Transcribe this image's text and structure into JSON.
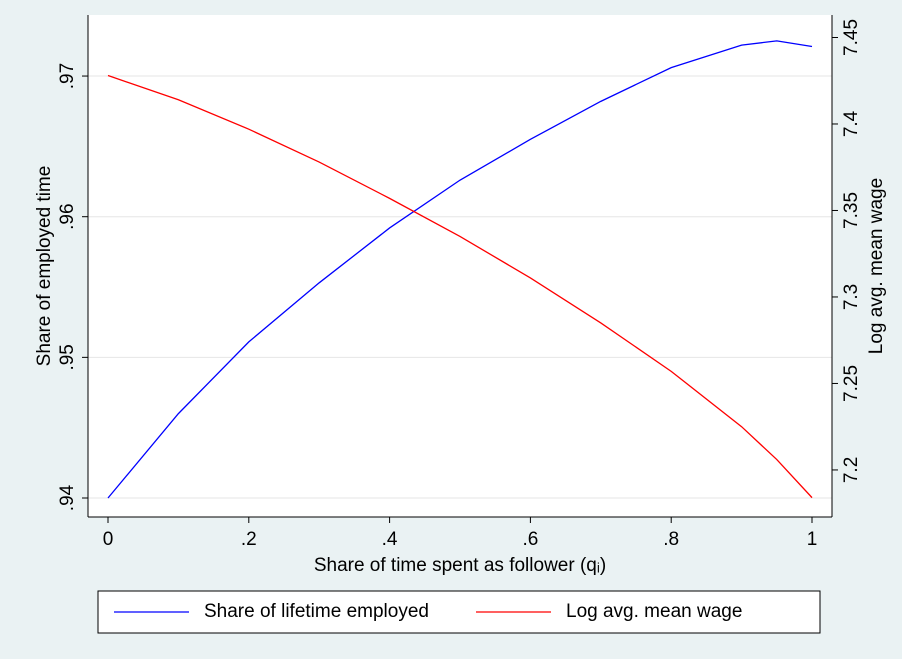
{
  "chart_data": {
    "type": "line",
    "x_label": "Share of time spent as follower (qᵢ)",
    "y_label": "Share of employed time",
    "y2_label": "Log avg. mean wage",
    "x": [
      0,
      0.1,
      0.2,
      0.3,
      0.4,
      0.5,
      0.6,
      0.7,
      0.8,
      0.9,
      0.95,
      1
    ],
    "series": [
      {
        "name": "Share of lifetime employed",
        "color": "#0000ff",
        "axis": "y",
        "values": [
          0.94,
          0.946,
          0.9511,
          0.9553,
          0.9592,
          0.9626,
          0.9655,
          0.9682,
          0.9706,
          0.9722,
          0.9725,
          0.9721
        ]
      },
      {
        "name": "Log avg. mean wage",
        "color": "#ff0000",
        "axis": "y2",
        "values": [
          7.428,
          7.414,
          7.397,
          7.378,
          7.357,
          7.335,
          7.311,
          7.285,
          7.257,
          7.225,
          7.206,
          7.184
        ]
      }
    ],
    "xlim": [
      -0.0284,
      1.0284
    ],
    "xticks": [
      0,
      {
        "value": 0.2,
        "label": ".2"
      },
      {
        "value": 0.4,
        "label": ".4"
      },
      {
        "value": 0.6,
        "label": ".6"
      },
      {
        "value": 0.8,
        "label": ".8"
      },
      1
    ],
    "ylim": [
      0.93865,
      0.97434
    ],
    "yticks": [
      {
        "value": 0.94,
        "label": ".94"
      },
      {
        "value": 0.95,
        "label": ".95"
      },
      {
        "value": 0.96,
        "label": ".96"
      },
      {
        "value": 0.97,
        "label": ".97"
      }
    ],
    "y2lim": [
      7.1728,
      7.463
    ],
    "y2ticks": [
      7.2,
      7.25,
      7.3,
      7.35,
      7.4,
      7.45
    ],
    "grid": true,
    "legend": "bottom"
  }
}
